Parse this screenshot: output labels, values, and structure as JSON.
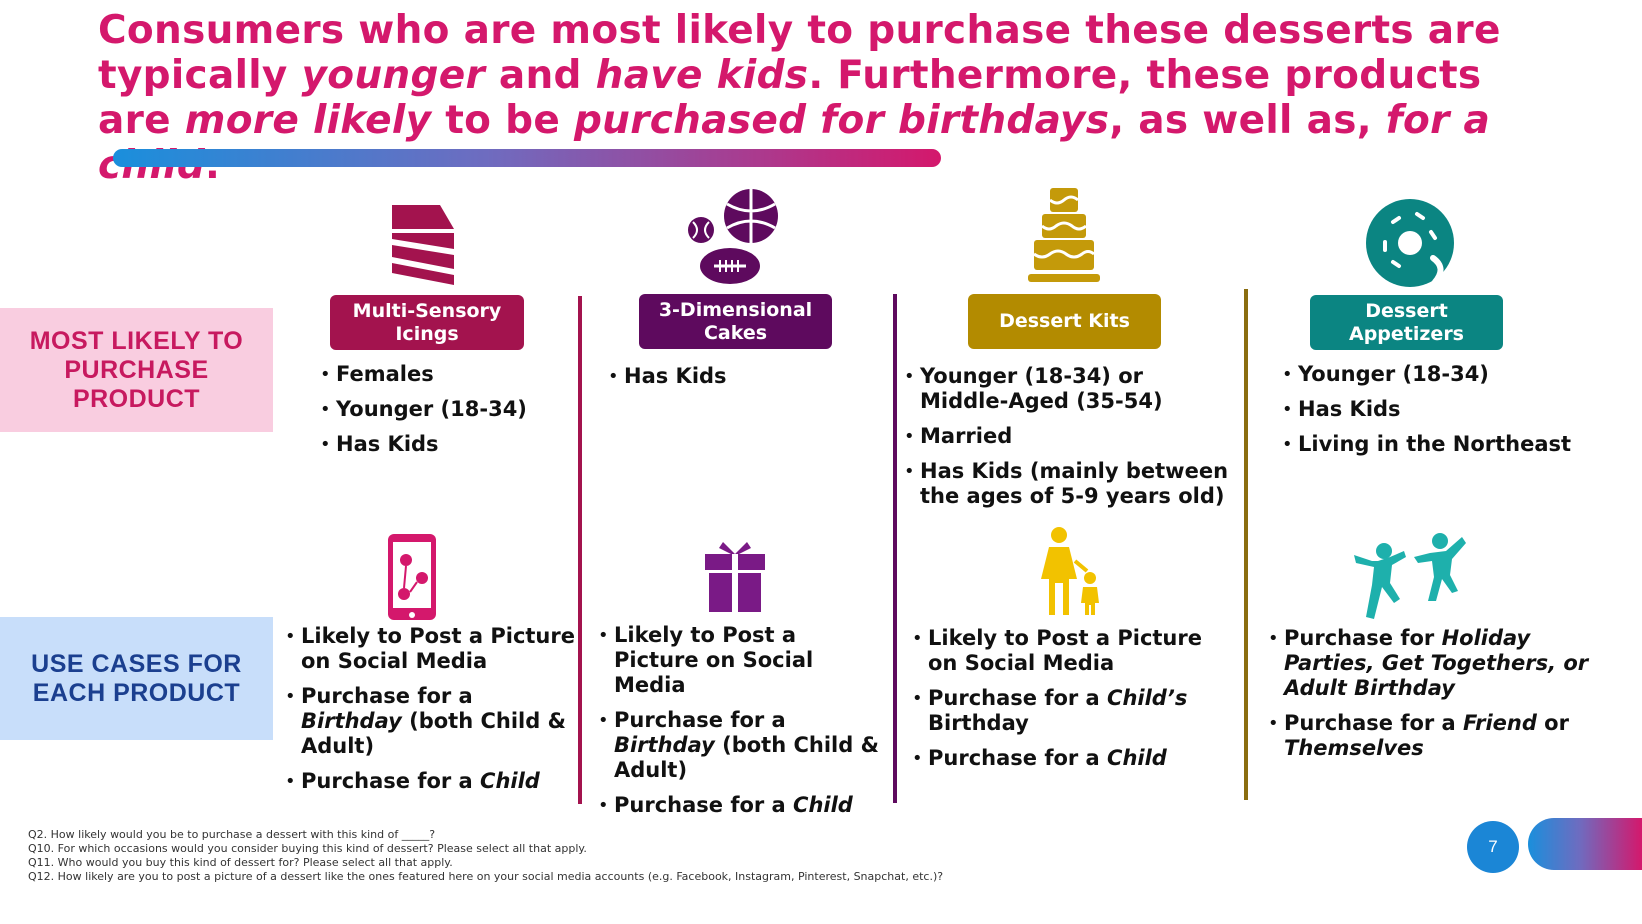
{
  "headline": {
    "part1": "Consumers who are most likely to purchase these desserts are typically ",
    "em1": "younger",
    "part2": " and ",
    "em2": "have kids",
    "part3": ". Furthermore, these products are ",
    "em3": "more likely",
    "part4": " to be ",
    "em4": "purchased for birthdays",
    "part5": ", as well as, ",
    "em5": "for a child",
    "part6": "."
  },
  "row_labels": {
    "likely": "MOST LIKELY TO PURCHASE PRODUCT",
    "use_cases": "USE CASES FOR EACH PRODUCT"
  },
  "colors": {
    "magenta": "#a3134e",
    "purple": "#5e0a5e",
    "gold": "#b38b00",
    "teal": "#0b8582",
    "headline": "#d4186c"
  },
  "products": [
    {
      "name": "Multi-Sensory Icings",
      "icon": "cake-slice-icon",
      "most_likely": [
        "Females",
        "Younger (18-34)",
        "Has Kids"
      ],
      "use_icon": "smartphone-social-icon",
      "use_cases": [
        {
          "a": "Likely to Post a Picture on Social Media"
        },
        {
          "a": "Purchase for a ",
          "e": "Birthday",
          "b": " (both Child & Adult)"
        },
        {
          "a": "Purchase for a ",
          "e": "Child"
        }
      ]
    },
    {
      "name": "3-Dimensional Cakes",
      "icon": "sports-balls-icon",
      "most_likely": [
        "Has Kids"
      ],
      "use_icon": "gift-icon",
      "use_cases": [
        {
          "a": "Likely to Post a Picture on Social Media"
        },
        {
          "a": "Purchase for a ",
          "e": "Birthday",
          "b": " (both Child & Adult)"
        },
        {
          "a": "Purchase for a ",
          "e": "Child"
        }
      ]
    },
    {
      "name": "Dessert Kits",
      "icon": "layer-cake-icon",
      "most_likely": [
        "Younger (18-34) or Middle-Aged (35-54)",
        "Married",
        "Has Kids (mainly between the ages of 5-9 years old)"
      ],
      "use_icon": "parent-child-icon",
      "use_cases": [
        {
          "a": "Likely to Post a Picture on Social Media"
        },
        {
          "a": "Purchase for a ",
          "e": "Child’s",
          "b": " Birthday"
        },
        {
          "a": "Purchase for a ",
          "e": "Child"
        }
      ]
    },
    {
      "name": "Dessert Appetizers",
      "icon": "donut-icon",
      "most_likely": [
        "Younger (18-34)",
        "Has Kids",
        "Living in the Northeast"
      ],
      "use_icon": "dancing-people-icon",
      "use_cases": [
        {
          "a": "Purchase for ",
          "e": "Holiday Parties, Get Togethers, or Adult Birthday"
        },
        {
          "a": "Purchase for a ",
          "e": "Friend",
          "b": " or ",
          "e2": "Themselves"
        }
      ]
    }
  ],
  "footnotes": [
    "Q2. How likely would you be to purchase a dessert with this kind of _____?",
    "Q10. For which occasions would you consider buying this kind of dessert?  Please select all that apply.",
    "Q11. Who would you buy this kind of dessert for? Please select all that apply.",
    "Q12. How likely are you to post a picture of a dessert like the ones featured here on your social media accounts (e.g. Facebook, Instagram, Pinterest, Snapchat, etc.)?"
  ],
  "page_number": "7"
}
